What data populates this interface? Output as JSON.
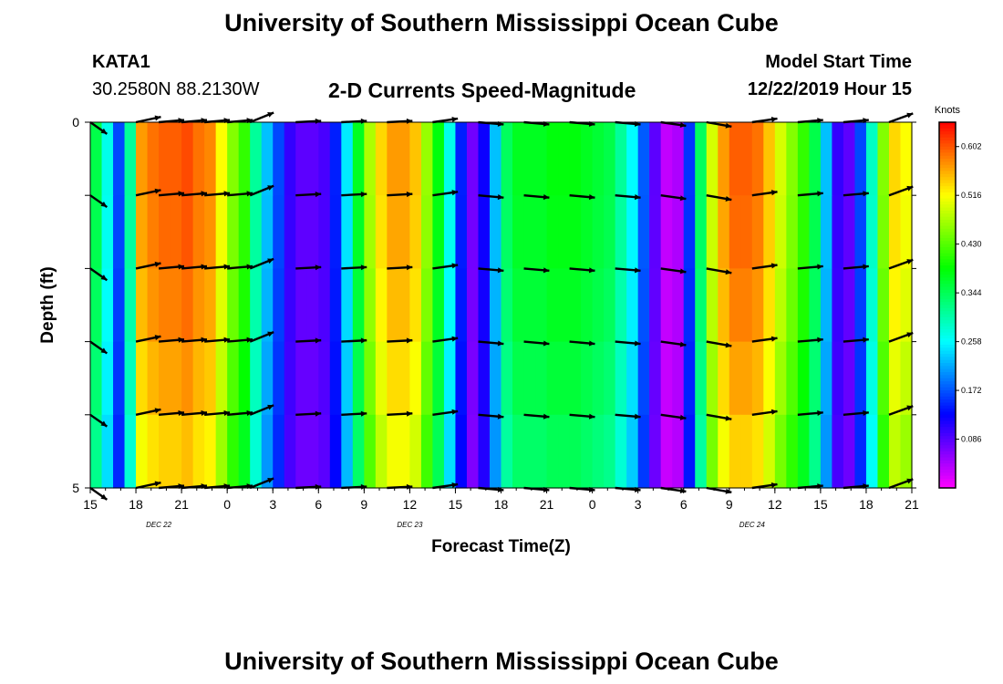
{
  "header": {
    "title": "University of Southern Mississippi Ocean Cube",
    "station_id": "KATA1",
    "station_coords": "30.2580N 88.2130W",
    "plot_title": "2-D Currents Speed-Magnitude",
    "model_label": "Model Start Time",
    "model_time": "12/22/2019 Hour 15"
  },
  "footer": {
    "title": "University of Southern Mississippi Ocean Cube"
  },
  "chart_data": {
    "type": "heatmap",
    "title": "2-D Currents Speed-Magnitude",
    "xlabel": "Forecast Time(Z)",
    "ylabel": "Depth (ft)",
    "x_hours_range": [
      0,
      54
    ],
    "y_range": [
      0,
      5
    ],
    "y_ticks": [
      "0",
      "5"
    ],
    "x_ticks": [
      "15",
      "18",
      "21",
      "0",
      "3",
      "6",
      "9",
      "12",
      "15",
      "18",
      "21",
      "0",
      "3",
      "6",
      "9",
      "12",
      "15",
      "18",
      "21"
    ],
    "date_labels": [
      {
        "text": "DEC 22",
        "hour": 4.5
      },
      {
        "text": "DEC 23",
        "hour": 21
      },
      {
        "text": "DEC 24",
        "hour": 43.5
      }
    ],
    "colorbar": {
      "unit": "Knots",
      "range": [
        0.0,
        0.645
      ],
      "ticks": [
        0.086,
        0.172,
        0.258,
        0.344,
        0.43,
        0.516,
        0.602
      ],
      "tick_labels": [
        "0.086",
        "0.172",
        "0.258",
        "0.344",
        "0.430",
        "0.516",
        "0.602"
      ]
    },
    "speed_by_hour": [
      0.34,
      0.26,
      0.16,
      0.3,
      0.55,
      0.57,
      0.58,
      0.58,
      0.59,
      0.57,
      0.56,
      0.5,
      0.44,
      0.4,
      0.3,
      0.22,
      0.16,
      0.1,
      0.08,
      0.08,
      0.09,
      0.14,
      0.24,
      0.36,
      0.46,
      0.52,
      0.55,
      0.55,
      0.53,
      0.45,
      0.37,
      0.26,
      0.14,
      0.07,
      0.12,
      0.22,
      0.33,
      0.36,
      0.36,
      0.36,
      0.37,
      0.37,
      0.37,
      0.36,
      0.35,
      0.34,
      0.3,
      0.25,
      0.17,
      0.08,
      0.03,
      0.04,
      0.15,
      0.33,
      0.48,
      0.55,
      0.58,
      0.58,
      0.57,
      0.53,
      0.48,
      0.44,
      0.4,
      0.34,
      0.22,
      0.1,
      0.08,
      0.16,
      0.28,
      0.44,
      0.52,
      0.5
    ],
    "depth_speed_factor": [
      1.03,
      1.02,
      1.0,
      0.97,
      0.93
    ],
    "vectors": {
      "depths": [
        0,
        1,
        2,
        3,
        4,
        5
      ],
      "hours": [
        0,
        3,
        4.5,
        6,
        7.5,
        9,
        10.5,
        13.5,
        16.5,
        19.5,
        22.5,
        25.5,
        28.5,
        31.5,
        34.5,
        37.5,
        40.5,
        43.5,
        46.5,
        49.5,
        52.5
      ],
      "angles_deg": [
        -35,
        12,
        5,
        5,
        5,
        5,
        22,
        3,
        3,
        3,
        8,
        -5,
        -5,
        -5,
        -5,
        -8,
        -10,
        8,
        5,
        5,
        20
      ],
      "lengths": [
        0.8,
        1,
        1,
        1,
        1,
        1,
        1,
        1,
        1,
        1,
        1,
        1,
        1,
        1,
        1,
        1,
        1,
        1,
        1,
        1,
        1
      ]
    }
  }
}
